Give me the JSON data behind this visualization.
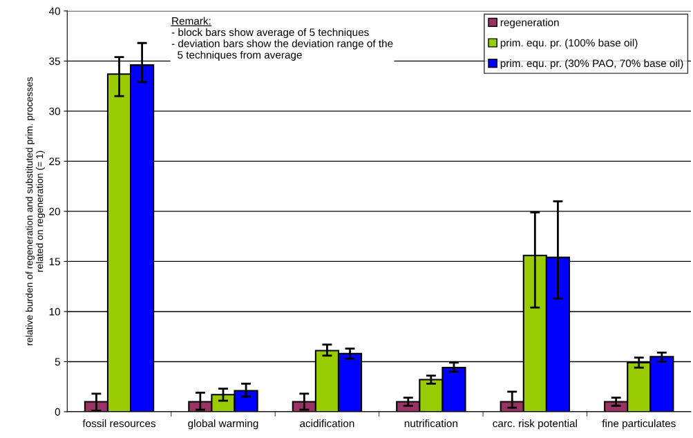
{
  "chart_data": {
    "type": "bar",
    "ylabel": "relative burden of regeneration and substituted prim. processes\nrelated on regeneration (= 1)",
    "categories": [
      "fossil resources",
      "global warming",
      "acidification",
      "nutrification",
      "carc. risk potential",
      "fine particulates"
    ],
    "series": [
      {
        "name": "regeneration",
        "color": "#993366",
        "values": [
          1,
          1,
          1,
          1,
          1,
          1
        ],
        "errors": [
          [
            0.1,
            1.8
          ],
          [
            0.2,
            1.9
          ],
          [
            0.2,
            1.8
          ],
          [
            0.6,
            1.4
          ],
          [
            0.4,
            2.0
          ],
          [
            0.6,
            1.4
          ]
        ]
      },
      {
        "name": "prim. equ. pr. (100% base oil)",
        "color": "#99cc00",
        "values": [
          33.7,
          1.7,
          6.1,
          3.2,
          15.6,
          4.9
        ],
        "errors": [
          [
            31.5,
            35.4
          ],
          [
            1.1,
            2.3
          ],
          [
            5.6,
            6.7
          ],
          [
            2.8,
            3.6
          ],
          [
            10.4,
            19.9
          ],
          [
            4.4,
            5.4
          ]
        ]
      },
      {
        "name": "prim. equ. pr. (30% PAO, 70% base oil)",
        "color": "#0000ff",
        "values": [
          34.6,
          2.1,
          5.8,
          4.4,
          15.4,
          5.5
        ],
        "errors": [
          [
            32.9,
            36.8
          ],
          [
            1.5,
            2.8
          ],
          [
            5.3,
            6.3
          ],
          [
            4.0,
            4.9
          ],
          [
            11.3,
            21.0
          ],
          [
            5.0,
            5.9
          ]
        ]
      }
    ],
    "ylim": [
      0,
      40
    ],
    "yticks": [
      0,
      5,
      10,
      15,
      20,
      25,
      30,
      35,
      40
    ],
    "grid": "y",
    "legend": "top right",
    "annotations": [
      "Remark:",
      "- block bars show average of 5 techniques",
      "- deviation bars show the deviation range of the\n  5 techniques from average"
    ]
  }
}
